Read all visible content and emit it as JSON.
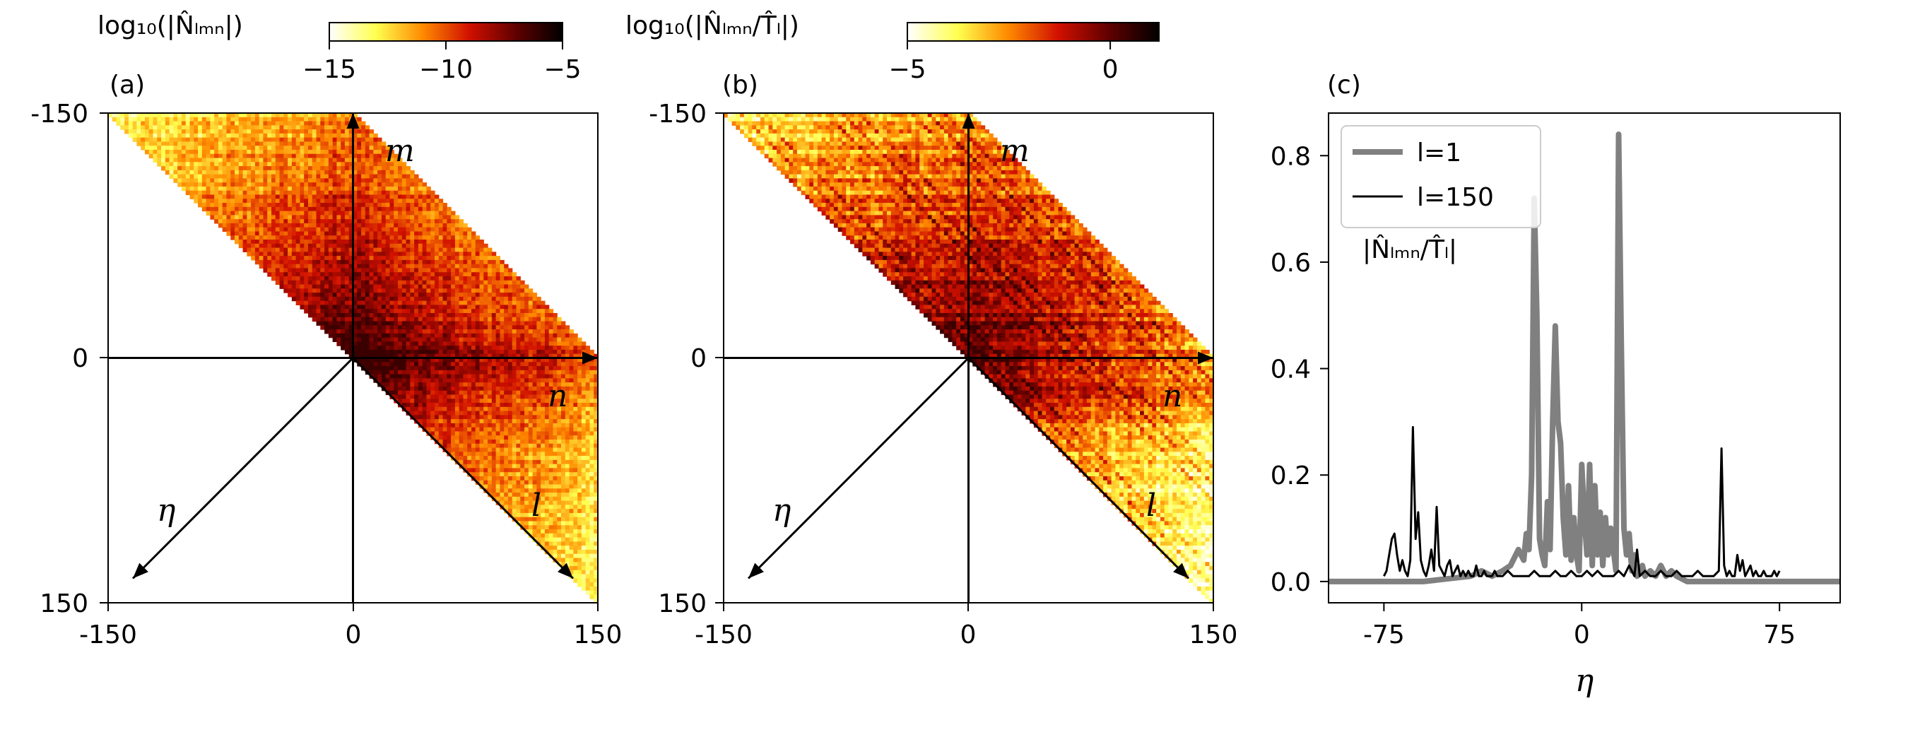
{
  "colors": {
    "colormap": "afmhot_r",
    "cmap_stops": [
      "#ffffff",
      "#ffff50",
      "#ff8a00",
      "#d01000",
      "#600000",
      "#000000"
    ],
    "series_l1": "#808080",
    "series_l150": "#000000"
  },
  "panels": {
    "a": {
      "tag": "(a)",
      "colorbar_label": "log₁₀(|N̂ₗₘₙ|)",
      "colorbar_range": [
        -15,
        -5
      ],
      "colorbar_ticks": [
        "−15",
        "−10",
        "−5"
      ],
      "x_ticks": [
        "-150",
        "0",
        "150"
      ],
      "y_ticks": [
        "-150",
        "0",
        "150"
      ],
      "axis_labels": {
        "m": "m",
        "n": "n",
        "l": "l",
        "eta": "η"
      }
    },
    "b": {
      "tag": "(b)",
      "colorbar_label": "log₁₀(|N̂ₗₘₙ/T̂ₗ|)",
      "colorbar_range": [
        -5,
        1.2
      ],
      "colorbar_ticks": [
        "−5",
        "0"
      ],
      "x_ticks": [
        "-150",
        "0",
        "150"
      ],
      "y_ticks": [
        "-150",
        "0",
        "150"
      ],
      "axis_labels": {
        "m": "m",
        "n": "n",
        "l": "l",
        "eta": "η"
      }
    },
    "c": {
      "tag": "(c)",
      "annotation": "|N̂ₗₘₙ/T̂ₗ|"
    }
  },
  "chart_data": [
    {
      "type": "heatmap",
      "panel": "a",
      "x_range": [
        -150,
        150
      ],
      "y_range": [
        -150,
        150
      ],
      "support": "lower-left half of the square between the diagonals m = n - 150 and m = n + 150, only cells with n ≥ m",
      "value_range": [
        -15,
        -5
      ],
      "structure": "strongest values (≈ -7 to -8) near the origin and along row m ≈ 0 / column n ≈ 0; weakening (≈ -12 to -15) toward the corners"
    },
    {
      "type": "heatmap",
      "panel": "b",
      "x_range": [
        -150,
        150
      ],
      "y_range": [
        -150,
        150
      ],
      "support": "same triangular band as panel (a)",
      "value_range": [
        -5,
        1.2
      ],
      "structure": "normalized version of (a): strong (≈ 0) along many diagonal streaks and rows near m ≈ 0, weak (≈ -5) toward the outer corners"
    },
    {
      "type": "line",
      "panel": "c",
      "xlabel": "η",
      "x_ticks": [
        -75,
        0,
        75
      ],
      "y_ticks": [
        0.0,
        0.2,
        0.4,
        0.6,
        0.8
      ],
      "x_ticks_display": [
        "-75",
        "0",
        "75"
      ],
      "y_ticks_display": [
        "0.0",
        "0.2",
        "0.4",
        "0.6",
        "0.8"
      ],
      "xlim": [
        -96,
        98
      ],
      "ylim": [
        -0.04,
        0.88
      ],
      "legend": "top-left",
      "series": [
        {
          "name": "l=1",
          "x": [
            -96,
            -60,
            -42,
            -38,
            -34,
            -30,
            -27,
            -24,
            -22,
            -21,
            -20,
            -19,
            -18,
            -17,
            -16,
            -15,
            -14,
            -13,
            -12,
            -11,
            -10,
            -9,
            -8,
            -7,
            -6,
            -5,
            -4,
            -3,
            -2,
            -1,
            0,
            1,
            2,
            3,
            4,
            5,
            6,
            7,
            8,
            9,
            10,
            11,
            12,
            13,
            14,
            15,
            16,
            17,
            18,
            19,
            20,
            21,
            22,
            23,
            24,
            26,
            28,
            30,
            32,
            34,
            36,
            40,
            98
          ],
          "y": [
            0.0,
            0.0,
            0.01,
            0.02,
            0.01,
            0.02,
            0.03,
            0.06,
            0.04,
            0.09,
            0.06,
            0.2,
            0.72,
            0.5,
            0.08,
            0.05,
            0.03,
            0.15,
            0.06,
            0.3,
            0.48,
            0.3,
            0.26,
            0.12,
            0.05,
            0.18,
            0.04,
            0.12,
            0.05,
            0.02,
            0.22,
            0.12,
            0.05,
            0.22,
            0.03,
            0.18,
            0.05,
            0.13,
            0.03,
            0.12,
            0.05,
            0.1,
            0.06,
            0.02,
            0.84,
            0.45,
            0.1,
            0.05,
            0.09,
            0.02,
            0.05,
            0.01,
            0.02,
            0.03,
            0.01,
            0.02,
            0.01,
            0.03,
            0.01,
            0.02,
            0.01,
            0.0,
            0.0
          ]
        },
        {
          "name": "l=150",
          "x": [
            -75,
            -74,
            -73,
            -72,
            -71,
            -70,
            -69,
            -68,
            -67,
            -66,
            -65,
            -64,
            -63,
            -62,
            -61,
            -60,
            -59,
            -58,
            -57,
            -56,
            -55,
            -54,
            -53,
            -52,
            -51,
            -50,
            -49,
            -48,
            -47,
            -46,
            -45,
            -44,
            -43,
            -42,
            -41,
            -40,
            -39,
            -38,
            -37,
            -36,
            -35,
            -34,
            -33,
            -32,
            -30,
            -28,
            -26,
            -24,
            -22,
            -20,
            -18,
            -16,
            -14,
            -12,
            -10,
            -8,
            -6,
            -4,
            -2,
            0,
            2,
            4,
            6,
            8,
            10,
            12,
            14,
            16,
            18,
            20,
            21,
            22,
            24,
            26,
            28,
            30,
            32,
            34,
            36,
            38,
            40,
            42,
            44,
            46,
            48,
            50,
            52,
            53,
            54,
            55,
            56,
            57,
            58,
            59,
            60,
            61,
            62,
            63,
            64,
            65,
            66,
            67,
            68,
            69,
            70,
            71,
            72,
            73,
            74,
            75
          ],
          "y": [
            0.01,
            0.02,
            0.05,
            0.08,
            0.09,
            0.05,
            0.02,
            0.04,
            0.02,
            0.01,
            0.04,
            0.29,
            0.08,
            0.13,
            0.04,
            0.02,
            0.01,
            0.03,
            0.06,
            0.02,
            0.14,
            0.03,
            0.02,
            0.01,
            0.03,
            0.04,
            0.01,
            0.02,
            0.03,
            0.01,
            0.02,
            0.01,
            0.02,
            0.01,
            0.01,
            0.03,
            0.01,
            0.01,
            0.02,
            0.01,
            0.01,
            0.01,
            0.02,
            0.01,
            0.01,
            0.02,
            0.01,
            0.01,
            0.01,
            0.01,
            0.02,
            0.01,
            0.01,
            0.01,
            0.02,
            0.01,
            0.01,
            0.02,
            0.01,
            0.01,
            0.02,
            0.01,
            0.02,
            0.01,
            0.01,
            0.01,
            0.02,
            0.01,
            0.03,
            0.01,
            0.06,
            0.01,
            0.02,
            0.01,
            0.01,
            0.02,
            0.01,
            0.01,
            0.02,
            0.01,
            0.01,
            0.01,
            0.02,
            0.01,
            0.01,
            0.01,
            0.02,
            0.25,
            0.03,
            0.01,
            0.02,
            0.01,
            0.01,
            0.05,
            0.02,
            0.04,
            0.01,
            0.02,
            0.03,
            0.01,
            0.02,
            0.01,
            0.01,
            0.02,
            0.01,
            0.01,
            0.01,
            0.02,
            0.01,
            0.02
          ]
        }
      ]
    }
  ]
}
